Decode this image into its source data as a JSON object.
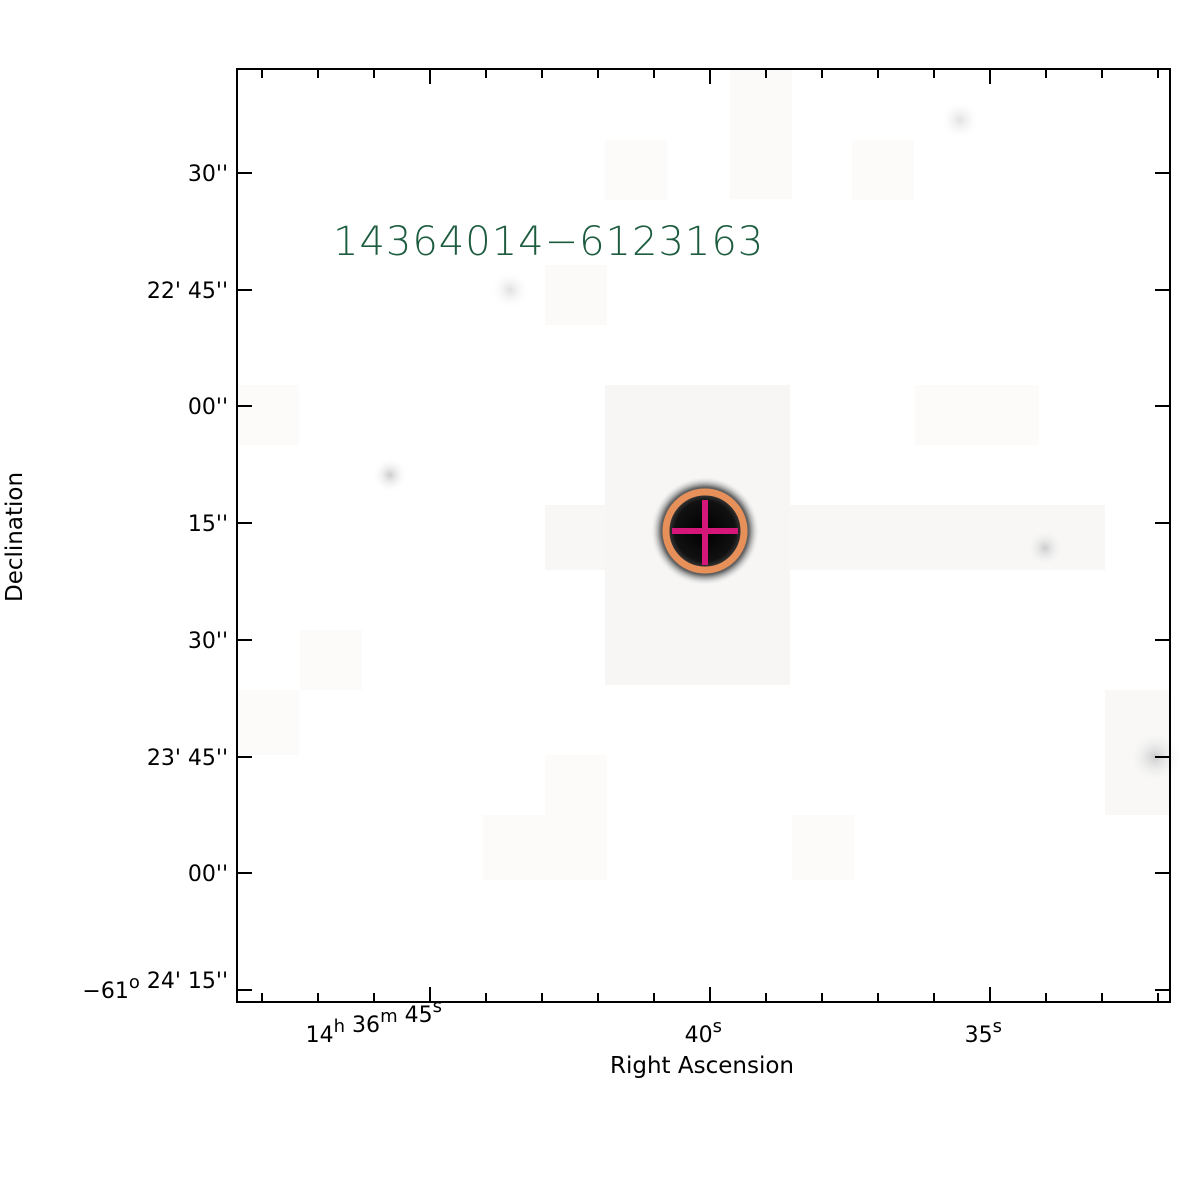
{
  "plot": {
    "title": "14364014−6123163",
    "xlabel": "Right Ascension",
    "ylabel": "Declination",
    "yticks": [
      [
        {
          "text": "30''"
        }
      ],
      [
        {
          "text": "22' 45''"
        }
      ],
      [
        {
          "text": "00''"
        }
      ],
      [
        {
          "text": "15''"
        }
      ],
      [
        {
          "text": "30''"
        }
      ],
      [
        {
          "text": "23' 45''"
        }
      ],
      [
        {
          "text": "00''"
        }
      ],
      [
        {
          "text": "−61",
          "sup": "o"
        },
        {
          "text": "24' 15''"
        }
      ]
    ],
    "xticks": [
      [
        {
          "text": "14",
          "sup": "h"
        },
        {
          "text": "36",
          "sup": "m"
        },
        {
          "text": "45",
          "sup": "s"
        }
      ],
      [
        {
          "text": "40",
          "sup": "s"
        }
      ],
      [
        {
          "text": "35",
          "sup": "s"
        }
      ]
    ]
  }
}
